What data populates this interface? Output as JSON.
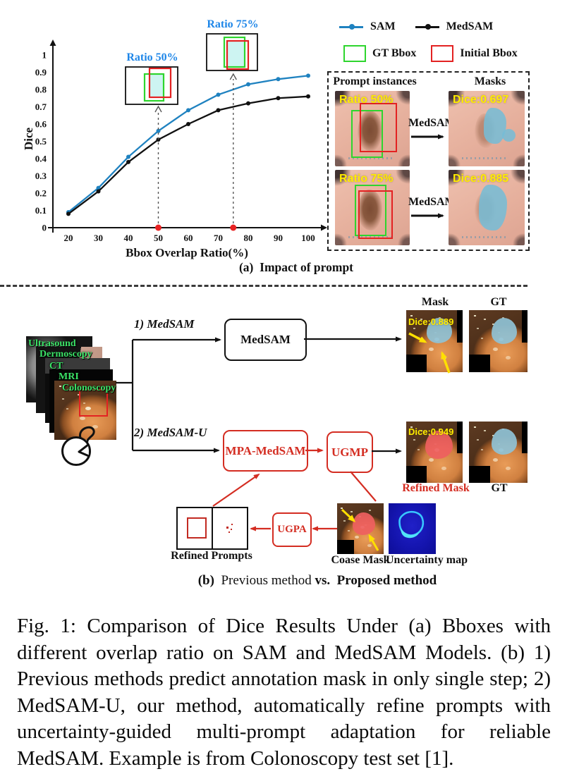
{
  "colors": {
    "sam_blue": "#1f82c0",
    "medsam_black": "#111111",
    "annotation_blue": "#1e86e8",
    "box_red": "#d42d22",
    "gt_green": "#2ed52e",
    "overlap_cyan": "#cdf4f2",
    "highlight_yellow": "#ffec00",
    "uncertainty_navy": "#1414ad",
    "modality_green": "#3be267"
  },
  "chart_data": {
    "type": "line",
    "title": "",
    "xlabel": "Bbox Overlap Ratio(%)",
    "ylabel": "Dice",
    "x": [
      20,
      30,
      40,
      50,
      60,
      70,
      80,
      90,
      100
    ],
    "y_ticks": [
      0,
      0.1,
      0.2,
      0.3,
      0.4,
      0.5,
      0.6,
      0.7,
      0.8,
      0.9,
      1
    ],
    "ylim": [
      0,
      1
    ],
    "grid": false,
    "legend_position": "top-right",
    "series": [
      {
        "name": "SAM",
        "color": "#1f82c0",
        "values": [
          0.09,
          0.23,
          0.41,
          0.56,
          0.68,
          0.77,
          0.83,
          0.86,
          0.88
        ]
      },
      {
        "name": "MedSAM",
        "color": "#111111",
        "values": [
          0.08,
          0.21,
          0.38,
          0.51,
          0.6,
          0.68,
          0.72,
          0.75,
          0.76
        ]
      }
    ],
    "marked_x": [
      50,
      75
    ],
    "annotations": [
      {
        "label": "Ratio 50%",
        "x": 50
      },
      {
        "label": "Ratio 75%",
        "x": 75
      }
    ]
  },
  "legend": {
    "sam": "SAM",
    "medsam": "MedSAM",
    "gt_bbox": "GT Bbox",
    "initial_bbox": "Initial Bbox"
  },
  "insets": {
    "ratio50": "Ratio 50%",
    "ratio75": "Ratio 75%"
  },
  "panel": {
    "prompt_header": "Prompt instances",
    "mask_header": "Masks",
    "rows": [
      {
        "ratio": "Ratio 50%",
        "model": "MedSAM",
        "dice": "Dice:0.697"
      },
      {
        "ratio": "Ratio 75%",
        "model": "MedSAM",
        "dice": "Dice:0.885"
      }
    ]
  },
  "caption_a": {
    "tag": "(a)",
    "text": "Impact of prompt"
  },
  "flow": {
    "modalities": [
      "Ultrasound",
      "Dermoscopy",
      "CT",
      "MRI",
      "Colonoscopy"
    ],
    "branch1": "1) MedSAM",
    "branch2": "2) MedSAM-U",
    "medsam_box": "MedSAM",
    "mpa_box": "MPA-MedSAM",
    "ugmp_box": "UGMP",
    "ugpa_box": "UGPA",
    "mask_header": "Mask",
    "gt_header": "GT",
    "dice_mask": "Dice:0.889",
    "dice_refined": "Dice:0.949",
    "refined_mask_label": "Refined Mask",
    "gt_label": "GT",
    "refined_prompts_label": "Refined Prompts",
    "coarse_mask_label": "Coase Mask",
    "uncertainty_label": "Uncertainty map"
  },
  "caption_b": {
    "tag": "(b)",
    "normal": "Previous method",
    "vs": "vs.",
    "bold": "Proposed method"
  },
  "figure_caption": "Fig. 1: Comparison of Dice Results Under (a) Bboxes with different overlap ratio on SAM and MedSAM Models. (b) 1) Previous methods predict annotation mask in only single step; 2) MedSAM-U, our method, automatically refine prompts with uncertainty-guided multi-prompt adaptation for reliable MedSAM. Example is from Colonoscopy test set [1]."
}
